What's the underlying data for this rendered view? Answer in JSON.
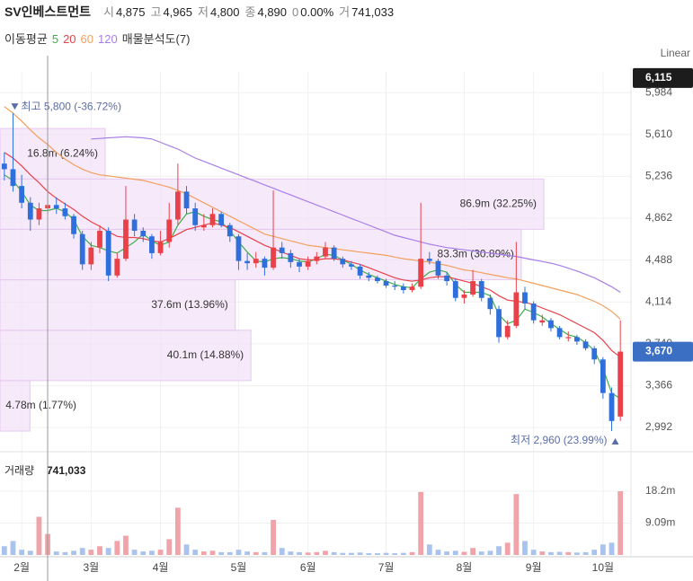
{
  "header": {
    "title": "SV인베스트먼트",
    "items": [
      {
        "label": "시",
        "value": "4,875"
      },
      {
        "label": "고",
        "value": "4,965"
      },
      {
        "label": "저",
        "value": "4,800"
      },
      {
        "label": "종",
        "value": "4,890"
      },
      {
        "label": "0",
        "value": "0.00%"
      },
      {
        "label": "거",
        "value": "741,033"
      }
    ]
  },
  "indicators": {
    "ma_label": "이동평균",
    "profile_label": "매물분석도(7)"
  },
  "chart_data": {
    "type": "candlestick",
    "scale_label": "Linear",
    "categories": [
      null,
      null,
      "2월",
      null,
      null,
      null,
      null,
      null,
      null,
      null,
      "3월",
      null,
      null,
      null,
      null,
      null,
      null,
      null,
      "4월",
      null,
      null,
      null,
      null,
      null,
      null,
      null,
      null,
      "5월",
      null,
      null,
      null,
      null,
      null,
      null,
      null,
      "6월",
      null,
      null,
      null,
      null,
      null,
      null,
      null,
      null,
      "7월",
      null,
      null,
      null,
      null,
      null,
      null,
      null,
      null,
      "8월",
      null,
      null,
      null,
      null,
      null,
      null,
      null,
      "9월",
      null,
      null,
      null,
      null,
      null,
      null,
      null,
      "10월",
      null,
      null
    ],
    "ohlc": [
      [
        5350,
        5450,
        5200,
        5300
      ],
      [
        5300,
        5800,
        5100,
        5150
      ],
      [
        5150,
        5250,
        4950,
        5000
      ],
      [
        5000,
        5050,
        4750,
        4850
      ],
      [
        4850,
        5000,
        4800,
        4950
      ],
      [
        4950,
        5550,
        4900,
        4980
      ],
      [
        4980,
        5050,
        4900,
        4950
      ],
      [
        4950,
        5000,
        4850,
        4880
      ],
      [
        4880,
        4900,
        4680,
        4720
      ],
      [
        4720,
        4750,
        4400,
        4450
      ],
      [
        4450,
        4650,
        4400,
        4600
      ],
      [
        4600,
        4800,
        4550,
        4750
      ],
      [
        4750,
        4780,
        4300,
        4350
      ],
      [
        4350,
        4550,
        4330,
        4500
      ],
      [
        4500,
        5150,
        4480,
        4850
      ],
      [
        4850,
        4900,
        4700,
        4750
      ],
      [
        4750,
        4780,
        4650,
        4700
      ],
      [
        4700,
        4720,
        4500,
        4550
      ],
      [
        4550,
        4750,
        4530,
        4650
      ],
      [
        4650,
        5000,
        4600,
        4850
      ],
      [
        4850,
        5350,
        4800,
        5100
      ],
      [
        5100,
        5150,
        4900,
        4950
      ],
      [
        4950,
        5000,
        4750,
        4800
      ],
      [
        4780,
        4900,
        4750,
        4800
      ],
      [
        4800,
        4950,
        4780,
        4900
      ],
      [
        4900,
        4920,
        4780,
        4800
      ],
      [
        4800,
        4820,
        4650,
        4700
      ],
      [
        4700,
        4720,
        4400,
        4480
      ],
      [
        4480,
        4550,
        4400,
        4460
      ],
      [
        4460,
        4560,
        4420,
        4500
      ],
      [
        4500,
        4520,
        4350,
        4420
      ],
      [
        4420,
        5110,
        4400,
        4600
      ],
      [
        4600,
        4650,
        4500,
        4550
      ],
      [
        4550,
        4580,
        4420,
        4470
      ],
      [
        4470,
        4500,
        4380,
        4430
      ],
      [
        4430,
        4520,
        4400,
        4480
      ],
      [
        4480,
        4560,
        4450,
        4520
      ],
      [
        4520,
        4650,
        4500,
        4600
      ],
      [
        4600,
        4620,
        4480,
        4500
      ],
      [
        4500,
        4520,
        4420,
        4450
      ],
      [
        4450,
        4480,
        4400,
        4430
      ],
      [
        4430,
        4450,
        4320,
        4350
      ],
      [
        4350,
        4380,
        4300,
        4330
      ],
      [
        4330,
        4350,
        4280,
        4300
      ],
      [
        4300,
        4320,
        4240,
        4260
      ],
      [
        4260,
        4300,
        4220,
        4250
      ],
      [
        4250,
        4280,
        4190,
        4220
      ],
      [
        4220,
        4280,
        4200,
        4250
      ],
      [
        4250,
        5000,
        4230,
        4500
      ],
      [
        4500,
        4560,
        4450,
        4480
      ],
      [
        4480,
        4500,
        4320,
        4350
      ],
      [
        4350,
        4380,
        4260,
        4300
      ],
      [
        4300,
        4320,
        4120,
        4150
      ],
      [
        4150,
        4220,
        4100,
        4180
      ],
      [
        4180,
        4400,
        4160,
        4300
      ],
      [
        4300,
        4320,
        4120,
        4150
      ],
      [
        4150,
        4180,
        4000,
        4050
      ],
      [
        4050,
        4080,
        3750,
        3800
      ],
      [
        3800,
        3950,
        3780,
        3900
      ],
      [
        3900,
        4650,
        3880,
        4200
      ],
      [
        4200,
        4250,
        4050,
        4100
      ],
      [
        4100,
        4120,
        3920,
        3950
      ],
      [
        3930,
        4000,
        3900,
        3950
      ],
      [
        3950,
        3970,
        3850,
        3880
      ],
      [
        3880,
        3900,
        3780,
        3800
      ],
      [
        3790,
        3850,
        3760,
        3800
      ],
      [
        3800,
        3820,
        3730,
        3760
      ],
      [
        3760,
        3780,
        3680,
        3700
      ],
      [
        3700,
        3720,
        3560,
        3600
      ],
      [
        3600,
        3620,
        3250,
        3300
      ],
      [
        3300,
        3350,
        2960,
        3050
      ],
      [
        3090,
        3950,
        3050,
        3670
      ]
    ],
    "up_color": "#e8414a",
    "down_color": "#2f6fdc",
    "ylim": [
      2800,
      6170
    ],
    "yticks": [
      {
        "value": 5984,
        "label": "5,984"
      },
      {
        "value": 5610,
        "label": "5,610"
      },
      {
        "value": 5236,
        "label": "5,236"
      },
      {
        "value": 4862,
        "label": "4,862"
      },
      {
        "value": 4488,
        "label": "4,488"
      },
      {
        "value": 4114,
        "label": "4,114"
      },
      {
        "value": 3740,
        "label": "3,740"
      },
      {
        "value": 3366,
        "label": "3,366"
      },
      {
        "value": 2992,
        "label": "2,992"
      }
    ],
    "grid": true,
    "series": [
      {
        "name": "5",
        "color": "#3fae49",
        "values": [
          5250,
          5200,
          5100,
          4980,
          4930,
          4930,
          4950,
          4920,
          4850,
          4700,
          4620,
          4600,
          4570,
          4550,
          4600,
          4650,
          4720,
          4660,
          4620,
          4650,
          4800,
          4900,
          4920,
          4880,
          4850,
          4830,
          4750,
          4650,
          4560,
          4480,
          4470,
          4500,
          4510,
          4500,
          4480,
          4470,
          4500,
          4540,
          4530,
          4490,
          4450,
          4400,
          4360,
          4330,
          4300,
          4270,
          4250,
          4240,
          4320,
          4380,
          4400,
          4380,
          4270,
          4200,
          4200,
          4200,
          4170,
          4000,
          3920,
          3950,
          4050,
          4020,
          3980,
          3920,
          3870,
          3820,
          3800,
          3750,
          3680,
          3520,
          3300,
          3250
        ]
      },
      {
        "name": "20",
        "color": "#e8414a",
        "values": [
          5450,
          5400,
          5330,
          5250,
          5180,
          5100,
          5040,
          4990,
          4940,
          4880,
          4830,
          4790,
          4740,
          4700,
          4690,
          4690,
          4680,
          4660,
          4650,
          4680,
          4720,
          4760,
          4780,
          4800,
          4820,
          4800,
          4780,
          4740,
          4700,
          4660,
          4620,
          4590,
          4560,
          4530,
          4500,
          4490,
          4490,
          4500,
          4500,
          4490,
          4470,
          4450,
          4420,
          4390,
          4360,
          4330,
          4310,
          4300,
          4310,
          4330,
          4340,
          4340,
          4320,
          4300,
          4280,
          4250,
          4220,
          4170,
          4130,
          4120,
          4110,
          4090,
          4060,
          4030,
          4000,
          3960,
          3920,
          3880,
          3840,
          3770,
          3680,
          3620
        ]
      },
      {
        "name": "60",
        "color": "#f2a05e",
        "values": [
          5860,
          5800,
          5730,
          5650,
          5580,
          5520,
          5450,
          5390,
          5340,
          5300,
          5270,
          5250,
          5240,
          5230,
          5220,
          5210,
          5200,
          5180,
          5160,
          5140,
          5110,
          5080,
          5040,
          5000,
          4960,
          4920,
          4880,
          4840,
          4800,
          4760,
          4720,
          4700,
          4680,
          4660,
          4640,
          4620,
          4610,
          4600,
          4590,
          4580,
          4570,
          4560,
          4550,
          4540,
          4530,
          4515,
          4500,
          4490,
          4480,
          4470,
          4455,
          4440,
          4420,
          4400,
          4390,
          4375,
          4360,
          4345,
          4330,
          4320,
          4300,
          4280,
          4260,
          4240,
          4220,
          4200,
          4180,
          4150,
          4120,
          4080,
          4030,
          3960
        ]
      },
      {
        "name": "120",
        "color": "#a77ee6",
        "values": [
          null,
          null,
          null,
          null,
          null,
          null,
          null,
          null,
          null,
          null,
          5570,
          5575,
          5580,
          5585,
          5590,
          5585,
          5580,
          5570,
          5540,
          5510,
          5480,
          5440,
          5400,
          5370,
          5340,
          5310,
          5280,
          5250,
          5220,
          5190,
          5160,
          5130,
          5100,
          5070,
          5040,
          5010,
          4980,
          4950,
          4920,
          4890,
          4860,
          4830,
          4800,
          4770,
          4740,
          4710,
          4690,
          4670,
          4650,
          4630,
          4615,
          4600,
          4590,
          4580,
          4570,
          4560,
          4550,
          4540,
          4530,
          4520,
          4505,
          4490,
          4475,
          4460,
          4440,
          4415,
          4390,
          4360,
          4330,
          4290,
          4250,
          4200
        ]
      }
    ],
    "badges": [
      {
        "value": 6115,
        "label": "6,115",
        "color": "#1c1c1c"
      },
      {
        "value": 3670,
        "label": "3,670",
        "color": "#3b6fc4"
      }
    ],
    "annotations": [
      {
        "label": "최고 5,800 (-36.72%)",
        "value": 5800
      },
      {
        "label": "최저 2,960 (23.99%)",
        "value": 2960
      }
    ],
    "profile": {
      "bins": [
        2960,
        3411,
        3861,
        4312,
        4763,
        5213,
        5664
      ],
      "volumes": [
        4.78,
        40.1,
        37.6,
        83.3,
        86.9,
        16.8
      ],
      "labels": [
        "4.78m (1.77%)",
        "40.1m (14.88%)",
        "37.6m (13.96%)",
        "83.3m (30.89%)",
        "86.9m (32.25%)",
        "16.8m (6.24%)"
      ],
      "color": "#f3e3f8"
    },
    "volume": {
      "title": "거래량",
      "value_label": "741,033",
      "values": [
        2.5,
        4.0,
        1.5,
        1.2,
        10.9,
        6.0,
        1.0,
        0.8,
        1.2,
        2.0,
        1.5,
        2.5,
        2.0,
        4.0,
        5.5,
        1.5,
        1.0,
        1.2,
        1.5,
        4.5,
        13.5,
        3.0,
        1.5,
        1.0,
        1.2,
        0.8,
        0.8,
        1.5,
        1.0,
        0.8,
        0.8,
        10.0,
        2.0,
        1.0,
        0.8,
        0.7,
        0.8,
        1.2,
        0.8,
        0.6,
        0.6,
        0.7,
        0.5,
        0.5,
        0.6,
        0.5,
        0.6,
        0.8,
        18.0,
        3.0,
        1.5,
        1.0,
        1.2,
        0.9,
        2.0,
        1.0,
        1.2,
        2.5,
        3.5,
        17.4,
        4.0,
        1.5,
        1.0,
        0.8,
        0.9,
        0.8,
        0.7,
        0.8,
        1.5,
        3.0,
        3.5,
        18.2
      ],
      "ylim": [
        0,
        27.7
      ],
      "yticks": [
        {
          "value": 18.2,
          "label": "18.2m"
        },
        {
          "value": 9.09,
          "label": "9.09m"
        }
      ],
      "up_color": "#f0a3a8",
      "down_color": "#a9c3ee"
    }
  }
}
